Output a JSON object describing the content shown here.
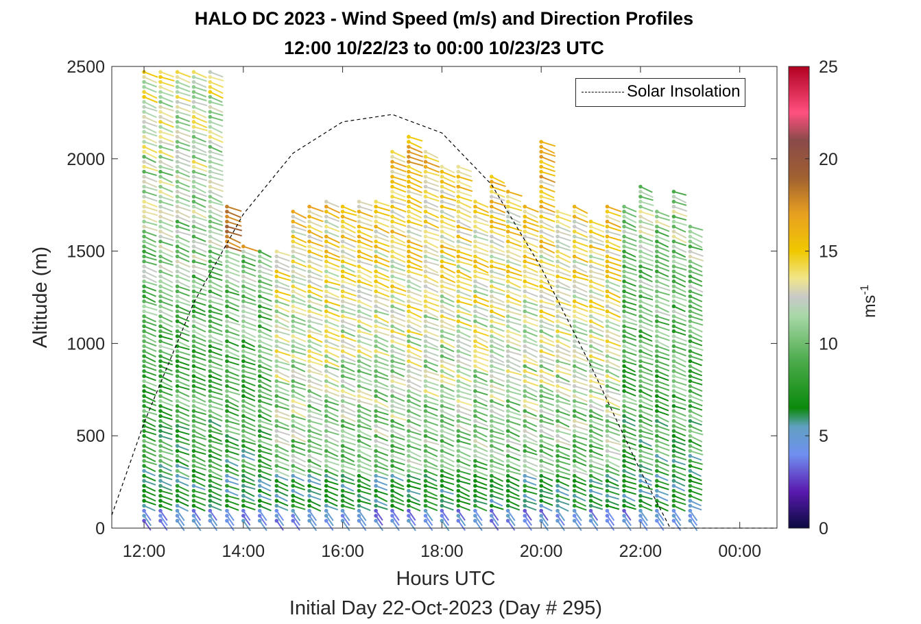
{
  "chart_data": {
    "type": "scatter",
    "title": "HALO DC 2023 - Wind Speed (m/s) and Direction Profiles",
    "subtitle": "12:00 10/22/23 to 00:00 10/23/23  UTC",
    "xlabel": "Hours UTC",
    "x_sublabel": "Initial Day 22-Oct-2023 (Day # 295)",
    "ylabel": "Altitude (m)",
    "xlim": [
      11.35,
      24.75
    ],
    "ylim": [
      0,
      2500
    ],
    "x_ticks": [
      12,
      14,
      16,
      18,
      20,
      22,
      24
    ],
    "x_tick_labels": [
      "12:00",
      "14:00",
      "16:00",
      "18:00",
      "20:00",
      "22:00",
      "00:00"
    ],
    "y_ticks": [
      0,
      500,
      1000,
      1500,
      2000,
      2500
    ],
    "y_tick_labels": [
      "0",
      "500",
      "1000",
      "1500",
      "2000",
      "2500"
    ],
    "legend": {
      "entries": [
        "Solar Insolation"
      ],
      "placement": "top-right"
    },
    "colorbar": {
      "label": "ms-1",
      "range": [
        0,
        25
      ],
      "ticks": [
        0,
        5,
        10,
        15,
        20,
        25
      ],
      "tick_labels": [
        "0",
        "5",
        "10",
        "15",
        "20",
        "25"
      ],
      "color_stops": [
        {
          "value": 0,
          "color": "#0a0a40"
        },
        {
          "value": 2,
          "color": "#5a1ab0"
        },
        {
          "value": 4,
          "color": "#7090f0"
        },
        {
          "value": 5.5,
          "color": "#60a0c0"
        },
        {
          "value": 6.5,
          "color": "#0b8a0b"
        },
        {
          "value": 9,
          "color": "#4aaa4a"
        },
        {
          "value": 11.5,
          "color": "#a8d8a8"
        },
        {
          "value": 12.5,
          "color": "#c8c8c8"
        },
        {
          "value": 13.5,
          "color": "#f0e68c"
        },
        {
          "value": 15,
          "color": "#f0c800"
        },
        {
          "value": 17,
          "color": "#e8a020"
        },
        {
          "value": 19,
          "color": "#a06030"
        },
        {
          "value": 21,
          "color": "#8a4a4a"
        },
        {
          "value": 22.5,
          "color": "#ff5080"
        },
        {
          "value": 25,
          "color": "#b00020"
        }
      ]
    },
    "solar_insolation": {
      "style": "dashed",
      "color": "#000000",
      "x": [
        11.35,
        12.0,
        13.0,
        14.0,
        15.0,
        16.0,
        17.0,
        18.0,
        19.0,
        20.0,
        21.0,
        22.0,
        22.6,
        24.75
      ],
      "y": [
        70,
        570,
        1220,
        1700,
        2030,
        2200,
        2240,
        2140,
        1860,
        1410,
        880,
        310,
        0,
        0
      ]
    },
    "profiles": [
      {
        "hour": 12.0,
        "top": 2470
      },
      {
        "hour": 12.33,
        "top": 2470
      },
      {
        "hour": 12.67,
        "top": 2470
      },
      {
        "hour": 13.0,
        "top": 2470
      },
      {
        "hour": 13.33,
        "top": 2470
      },
      {
        "hour": 13.67,
        "top": 1760
      },
      {
        "hour": 14.0,
        "top": 1550
      },
      {
        "hour": 14.33,
        "top": 1520
      },
      {
        "hour": 14.67,
        "top": 1500
      },
      {
        "hour": 15.0,
        "top": 1740
      },
      {
        "hour": 15.33,
        "top": 1760
      },
      {
        "hour": 15.67,
        "top": 1780
      },
      {
        "hour": 16.0,
        "top": 1760
      },
      {
        "hour": 16.33,
        "top": 1780
      },
      {
        "hour": 16.67,
        "top": 1780
      },
      {
        "hour": 17.0,
        "top": 2040
      },
      {
        "hour": 17.33,
        "top": 2120
      },
      {
        "hour": 17.67,
        "top": 2040
      },
      {
        "hour": 18.0,
        "top": 1960
      },
      {
        "hour": 18.33,
        "top": 1960
      },
      {
        "hour": 18.67,
        "top": 1780
      },
      {
        "hour": 19.0,
        "top": 1920
      },
      {
        "hour": 19.33,
        "top": 1840
      },
      {
        "hour": 19.67,
        "top": 1760
      },
      {
        "hour": 20.0,
        "top": 2100
      },
      {
        "hour": 20.33,
        "top": 1740
      },
      {
        "hour": 20.67,
        "top": 1760
      },
      {
        "hour": 21.0,
        "top": 1660
      },
      {
        "hour": 21.33,
        "top": 1760
      },
      {
        "hour": 21.67,
        "top": 1760
      },
      {
        "hour": 22.0,
        "top": 1860
      },
      {
        "hour": 22.33,
        "top": 1740
      },
      {
        "hour": 22.67,
        "top": 1840
      },
      {
        "hour": 23.0,
        "top": 1640
      }
    ]
  }
}
